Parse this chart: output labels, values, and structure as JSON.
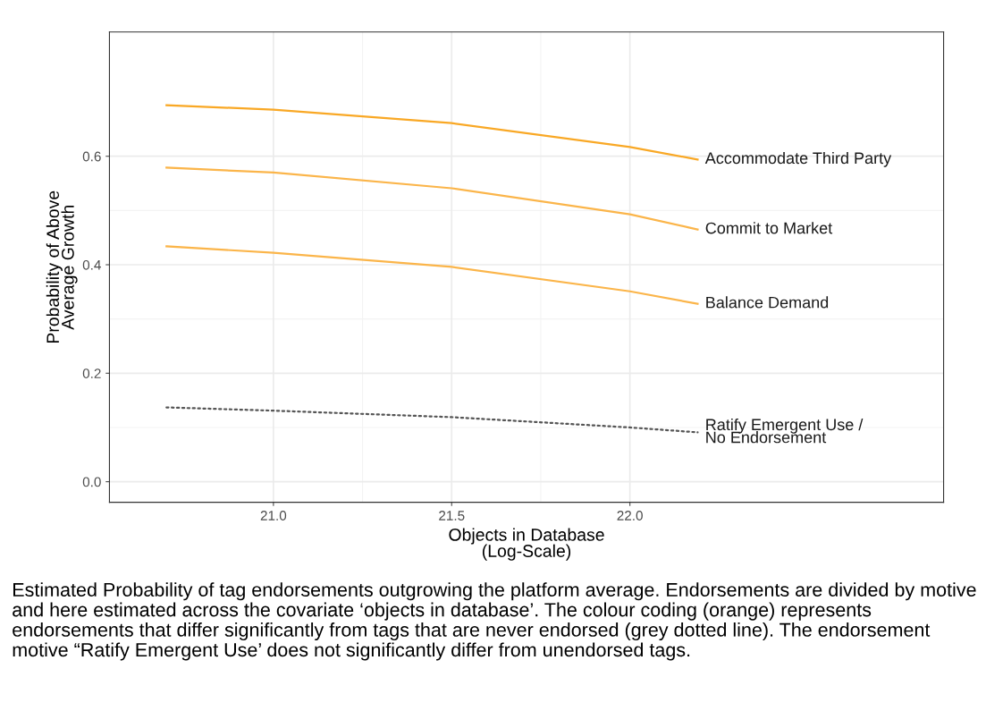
{
  "chart_data": {
    "type": "line",
    "xlabel": "Objects in Database\n(Log-Scale)",
    "ylabel": "Probability of Above\nAverage Growth",
    "x": [
      20.7,
      21.0,
      21.5,
      22.0,
      22.19
    ],
    "series": [
      {
        "name": "Accommodate Third Party",
        "color": "#f9a825",
        "values": [
          0.694,
          0.686,
          0.661,
          0.617,
          0.594
        ]
      },
      {
        "name": "Commit to Market",
        "color": "#fbb54a",
        "values": [
          0.579,
          0.57,
          0.541,
          0.493,
          0.465
        ]
      },
      {
        "name": "Balance Demand",
        "color": "#fbb54a",
        "values": [
          0.434,
          0.422,
          0.396,
          0.351,
          0.328
        ]
      },
      {
        "name": "Ratify Emergent Use /\nNo Endorsement",
        "color": "#555555",
        "line_style": "dotted",
        "values": [
          0.137,
          0.131,
          0.119,
          0.1,
          0.091
        ]
      }
    ],
    "xlim": [
      20.54,
      22.88
    ],
    "ylim": [
      -0.038,
      0.829
    ],
    "xticks": [
      {
        "value": 21.0,
        "label": "21.0"
      },
      {
        "value": 21.5,
        "label": "21.5"
      },
      {
        "value": 22.0,
        "label": "22.0"
      }
    ],
    "yticks": [
      {
        "value": 0.0,
        "label": "0.0"
      },
      {
        "value": 0.2,
        "label": "0.2"
      },
      {
        "value": 0.4,
        "label": "0.4"
      },
      {
        "value": 0.6,
        "label": "0.6"
      }
    ],
    "grid": true,
    "line_style": "solid",
    "annotations": [
      "Estimated Probability of tag endorsements outgrowing the platform average. Endorsements are divided by motive and here estimated across the covariate ‘objects in database’. The colour coding (orange) represents endorsements that differ significantly from tags that are never endorsed (grey dotted line). The endorsement motive “Ratify Emergent Use’ does not significantly differ from unendorsed tags."
    ]
  }
}
